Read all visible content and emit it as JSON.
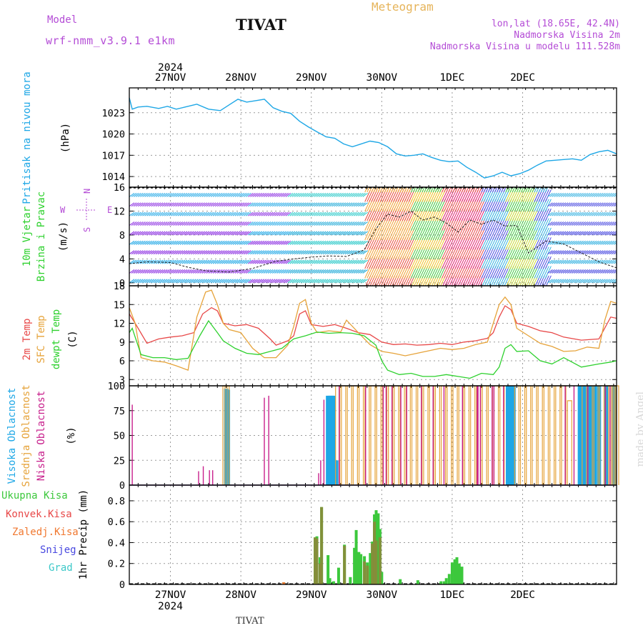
{
  "header": {
    "model_label": "Model",
    "model_name": "wrf-nmm_v3.9.1 e1km",
    "station": "TIVAT",
    "title": "Meteogram",
    "coords": "lon,lat (18.65E, 42.4N)",
    "altitude": "Nadmorska Visina 2m",
    "model_altitude": "Nadmorska Visina u modelu 111.528m",
    "footer_station": "TIVAT",
    "made_by": "made by Angel"
  },
  "x_axis": {
    "year": "2024",
    "day_labels": [
      "27NOV",
      "28NOV",
      "29NOV",
      "30NOV",
      "1DEC",
      "2DEC"
    ],
    "range_hours": [
      -14,
      152
    ]
  },
  "colors": {
    "pressure": "#1ea7e6",
    "temp_2m": "#e84848",
    "temp_sfc": "#e6a33a",
    "dewpoint": "#2ed12e",
    "cloud_high": "#1ea7e6",
    "cloud_mid": "#e6a33a",
    "cloud_low": "#c8208c",
    "precip_total": "#3cc83c",
    "precip_conv": "#e84848",
    "precip_frozen": "#f07830",
    "snow": "#4848e0",
    "graupel": "#3cc8c8",
    "axis_label_purple": "#b44cd6"
  },
  "panels": {
    "pressure": {
      "label": "Pritisak na nivou mora",
      "unit": "(hPa)"
    },
    "wind": {
      "label1": "10m Vjetar",
      "label2": "Brzina i Pravac",
      "unit": "(m/s)",
      "compass": [
        "N",
        "W",
        "E",
        "S"
      ]
    },
    "temperature": {
      "label1": "2m Temp",
      "label2": "SFC Temp",
      "label3": "dewpt Temp",
      "unit": "(C)"
    },
    "cloud": {
      "label1": "Visoka Oblacnost",
      "label2": "Srednja Oblacnost",
      "label3": "Niska Oblacnost",
      "unit": "(%)"
    },
    "precip": {
      "legend": [
        "Ukupna Kisa",
        "Konvek.Kisa",
        "Zaledj.Kisa",
        "Snijeg",
        "Grad"
      ],
      "ylabel": "1hr Precip (mm)"
    }
  },
  "chart_data": [
    {
      "type": "line",
      "panel": "pressure",
      "ylim": [
        1012.5,
        1026.5
      ],
      "yticks": [
        1014,
        1017,
        1020,
        1023
      ],
      "series": [
        {
          "x": [
            -14,
            -13,
            -11,
            -8,
            -4,
            -1,
            2,
            5,
            9,
            13,
            17,
            20,
            23,
            26,
            29,
            32,
            35,
            38,
            41,
            44,
            47,
            50,
            53,
            56,
            59,
            62,
            65,
            68,
            71,
            74,
            77,
            80,
            83,
            86,
            89,
            92,
            95,
            98,
            101,
            104,
            107,
            110,
            113,
            116,
            119,
            122,
            125,
            128,
            131,
            134,
            137,
            140,
            143,
            146,
            149,
            152
          ],
          "values": [
            1025.1,
            1023.5,
            1023.8,
            1023.9,
            1023.6,
            1023.9,
            1023.5,
            1023.8,
            1024.2,
            1023.5,
            1023.3,
            1024.1,
            1024.9,
            1024.5,
            1024.7,
            1024.9,
            1023.7,
            1023.2,
            1022.9,
            1021.8,
            1021.0,
            1020.3,
            1019.6,
            1019.4,
            1018.6,
            1018.2,
            1018.6,
            1019.0,
            1018.8,
            1018.2,
            1017.2,
            1016.9,
            1017.0,
            1017.2,
            1016.7,
            1016.3,
            1016.1,
            1016.2,
            1015.3,
            1014.6,
            1013.8,
            1014.1,
            1014.6,
            1014.1,
            1014.4,
            1014.9,
            1015.6,
            1016.2,
            1016.3,
            1016.4,
            1016.5,
            1016.3,
            1017.1,
            1017.5,
            1017.7,
            1017.2
          ]
        }
      ]
    },
    {
      "type": "line",
      "panel": "wind",
      "ylim": [
        -0.5,
        16
      ],
      "yticks": [
        0,
        4,
        8,
        12,
        16
      ],
      "series": [
        {
          "name": "wind speed",
          "x": [
            -14,
            -8,
            0,
            6,
            12,
            20,
            28,
            36,
            42,
            48,
            54,
            60,
            66,
            70,
            74,
            78,
            82,
            86,
            90,
            94,
            98,
            102,
            106,
            110,
            114,
            118,
            122,
            128,
            134,
            140,
            146,
            152
          ],
          "values": [
            3.2,
            3.5,
            3.4,
            2.6,
            2.0,
            1.8,
            2.4,
            3.6,
            4.0,
            4.3,
            4.5,
            4.4,
            5.5,
            9.0,
            11.5,
            11.0,
            12.0,
            10.5,
            11.0,
            10.0,
            8.5,
            10.5,
            9.8,
            10.5,
            9.5,
            9.6,
            5.0,
            7.0,
            6.5,
            5.0,
            3.5,
            2.5
          ]
        }
      ]
    },
    {
      "type": "line",
      "panel": "temperature",
      "ylim": [
        2,
        18
      ],
      "yticks": [
        3,
        6,
        9,
        12,
        15,
        18
      ],
      "series": [
        {
          "name": "2m Temp",
          "x": [
            -14,
            -12,
            -8,
            -4,
            0,
            4,
            8,
            11,
            14,
            16,
            18,
            22,
            26,
            30,
            34,
            36,
            40,
            42,
            44,
            46,
            48,
            52,
            56,
            60,
            64,
            68,
            72,
            76,
            80,
            84,
            88,
            92,
            96,
            100,
            104,
            108,
            110,
            112,
            114,
            116,
            118,
            122,
            126,
            130,
            134,
            140,
            146,
            150,
            152
          ],
          "values": [
            13.5,
            12.0,
            8.8,
            9.5,
            9.8,
            10.0,
            10.5,
            13.5,
            14.5,
            14.0,
            12.0,
            11.6,
            11.8,
            11.2,
            9.5,
            8.5,
            9.2,
            10.0,
            13.5,
            14.0,
            11.8,
            11.5,
            11.8,
            11.2,
            10.5,
            10.2,
            9.0,
            8.6,
            8.7,
            8.5,
            8.6,
            8.8,
            8.6,
            9.0,
            9.2,
            9.6,
            10.5,
            13.0,
            14.8,
            14.2,
            12.0,
            11.5,
            10.8,
            10.5,
            9.8,
            9.3,
            9.5,
            13.0,
            12.8
          ]
        },
        {
          "name": "SFC Temp",
          "x": [
            -14,
            -12,
            -10,
            -6,
            -2,
            2,
            6,
            9,
            12,
            14,
            16,
            18,
            20,
            24,
            28,
            32,
            36,
            40,
            42,
            44,
            46,
            48,
            50,
            54,
            58,
            60,
            64,
            68,
            72,
            76,
            80,
            84,
            88,
            92,
            96,
            100,
            104,
            108,
            110,
            112,
            114,
            116,
            118,
            122,
            126,
            130,
            134,
            138,
            142,
            146,
            148,
            150,
            152
          ],
          "values": [
            14.5,
            12.0,
            6.5,
            6.0,
            5.8,
            5.2,
            4.5,
            13.0,
            17.0,
            17.3,
            15.0,
            12.0,
            11.0,
            10.5,
            8.0,
            6.5,
            6.5,
            8.5,
            11.5,
            15.2,
            15.8,
            12.0,
            10.5,
            10.8,
            10.6,
            12.5,
            10.5,
            8.6,
            7.5,
            7.2,
            6.8,
            7.2,
            7.6,
            8.0,
            7.8,
            8.0,
            8.6,
            9.0,
            12.0,
            15.0,
            16.2,
            15.0,
            11.2,
            10.0,
            8.8,
            8.3,
            7.5,
            7.6,
            8.2,
            8.0,
            12.5,
            15.5,
            15.2
          ]
        },
        {
          "name": "dewpt Temp",
          "x": [
            -14,
            -13,
            -12,
            -10,
            -6,
            -2,
            2,
            6,
            10,
            13,
            16,
            18,
            22,
            26,
            30,
            34,
            38,
            42,
            46,
            50,
            54,
            58,
            62,
            66,
            70,
            72,
            74,
            78,
            82,
            86,
            90,
            94,
            98,
            102,
            106,
            110,
            112,
            114,
            116,
            118,
            122,
            126,
            130,
            134,
            140,
            146,
            150,
            152
          ],
          "values": [
            10.5,
            11.2,
            9.8,
            7.0,
            6.5,
            6.5,
            6.2,
            6.4,
            10.0,
            12.4,
            10.5,
            9.2,
            8.0,
            7.2,
            7.0,
            7.5,
            8.0,
            9.5,
            10.0,
            10.6,
            10.4,
            10.5,
            10.4,
            10.0,
            8.5,
            6.0,
            4.5,
            3.8,
            4.0,
            3.5,
            3.5,
            3.8,
            3.5,
            3.2,
            4.0,
            3.8,
            5.0,
            8.0,
            8.6,
            7.5,
            7.6,
            6.0,
            5.5,
            6.5,
            5.0,
            5.5,
            5.8,
            6.0
          ]
        }
      ]
    },
    {
      "type": "bar",
      "panel": "cloud",
      "ylim": [
        0,
        100
      ],
      "yticks": [
        0,
        25,
        50,
        75,
        100
      ],
      "series": [
        {
          "name": "Visoka Oblacnost",
          "x": [
            19,
            19.6,
            53.7,
            54.3,
            55.0,
            55.6,
            56.5,
            115,
            116.3,
            116.9,
            139.5,
            140.7,
            142.0,
            143.2,
            143.7,
            144.5,
            146.0,
            148.6,
            151.2
          ],
          "values": [
            97,
            96,
            90,
            90,
            90,
            90,
            25,
            100,
            100,
            100,
            100,
            100,
            100,
            100,
            100,
            100,
            100,
            100,
            100
          ]
        },
        {
          "name": "Srednja Oblacnost",
          "x": [
            18.6,
            19.3,
            57,
            59,
            61,
            63,
            65,
            67,
            69,
            71,
            73,
            75,
            77,
            79,
            81,
            83,
            85,
            87,
            89,
            91,
            93,
            95,
            97,
            99,
            101,
            103,
            105,
            107,
            109,
            111,
            113,
            118,
            120,
            122,
            124,
            126,
            128,
            130,
            132,
            134,
            136,
            141,
            143,
            145,
            147,
            149,
            150,
            151,
            152
          ],
          "values": [
            100,
            100,
            100,
            100,
            100,
            100,
            100,
            100,
            100,
            100,
            100,
            100,
            100,
            100,
            100,
            100,
            100,
            100,
            100,
            100,
            100,
            100,
            100,
            100,
            100,
            100,
            100,
            100,
            100,
            100,
            100,
            100,
            100,
            100,
            100,
            100,
            100,
            100,
            100,
            100,
            85,
            100,
            100,
            100,
            100,
            100,
            100,
            100,
            100
          ]
        },
        {
          "name": "Niska Oblacnost",
          "x": [
            -13,
            9.6,
            11.2,
            13.3,
            14.4,
            32,
            33.5,
            50.5,
            51.2,
            52.3,
            57.5,
            66.5,
            72.5,
            73.5,
            75.5,
            78.5,
            80.5,
            85.5,
            89.5,
            93.2,
            99.5,
            104.5,
            104.8,
            105.6,
            109.6,
            110.2,
            113.5,
            134.5,
            137.5,
            142.2,
            148.2,
            149.8
          ],
          "values": [
            81,
            14,
            19,
            15,
            15,
            88,
            90,
            12,
            25,
            86,
            100,
            100,
            100,
            100,
            100,
            100,
            100,
            100,
            100,
            100,
            100,
            100,
            100,
            100,
            100,
            100,
            100,
            100,
            100,
            100,
            100,
            100
          ]
        }
      ]
    },
    {
      "type": "bar",
      "panel": "precipitation",
      "ylim": [
        0,
        0.95
      ],
      "yticks": [
        0,
        0.2,
        0.4,
        0.6,
        0.8
      ],
      "series": [
        {
          "name": "Ukupna Kisa",
          "x": [
            38.6,
            49.3,
            49.9,
            51.0,
            51.5,
            53.7,
            54.3,
            55.6,
            57.3,
            59.3,
            61.3,
            62.7,
            63.3,
            64.2,
            64.9,
            66.1,
            67.1,
            68.1,
            68.8,
            69.5,
            70.1,
            70.8,
            71.4,
            72.0,
            78.3,
            84.3,
            92.2,
            93.3,
            94.0,
            95.0,
            96.0,
            96.9,
            97.6,
            98.4,
            99.3
          ],
          "values": [
            0.02,
            0.45,
            0.46,
            0.26,
            0.74,
            0.28,
            0.06,
            0.03,
            0.16,
            0.38,
            0.07,
            0.35,
            0.52,
            0.31,
            0.29,
            0.27,
            0.21,
            0.3,
            0.41,
            0.67,
            0.71,
            0.68,
            0.53,
            0.12,
            0.05,
            0.04,
            0.03,
            0.03,
            0.06,
            0.1,
            0.21,
            0.24,
            0.26,
            0.2,
            0.17
          ]
        },
        {
          "name": "Konvek.Kisa",
          "x": [
            49.3,
            49.9,
            51.0,
            51.5,
            59.3,
            66.1,
            67.1,
            68.8,
            69.5,
            70.1,
            71.4
          ],
          "values": [
            0.45,
            0.44,
            0.2,
            0.74,
            0.37,
            0.22,
            0.18,
            0.39,
            0.6,
            0.42,
            0.45
          ]
        },
        {
          "name": "Zaledj.Kisa",
          "x": [
            38.6
          ],
          "values": [
            0.02
          ]
        }
      ]
    }
  ]
}
